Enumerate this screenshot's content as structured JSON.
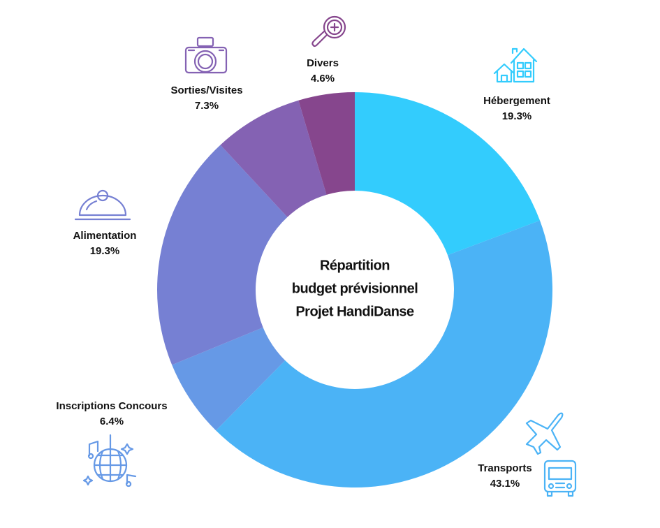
{
  "chart_data": {
    "type": "donut",
    "title": [
      "Répartition",
      "budget prévisionnel",
      "Projet HandiDanse"
    ],
    "categories": [
      "Hébergement",
      "Transports",
      "Inscriptions Concours",
      "Alimentation",
      "Sorties/Visites",
      "Divers"
    ],
    "values": [
      19.3,
      43.1,
      6.4,
      19.3,
      7.3,
      4.6
    ],
    "value_labels": [
      "19.3%",
      "43.1%",
      "6.4%",
      "19.3%",
      "7.3%",
      "4.6%"
    ],
    "colors": [
      "#33ccfd",
      "#4bb3f6",
      "#6699e6",
      "#7680d3",
      "#8462b3",
      "#86468d"
    ]
  }
}
